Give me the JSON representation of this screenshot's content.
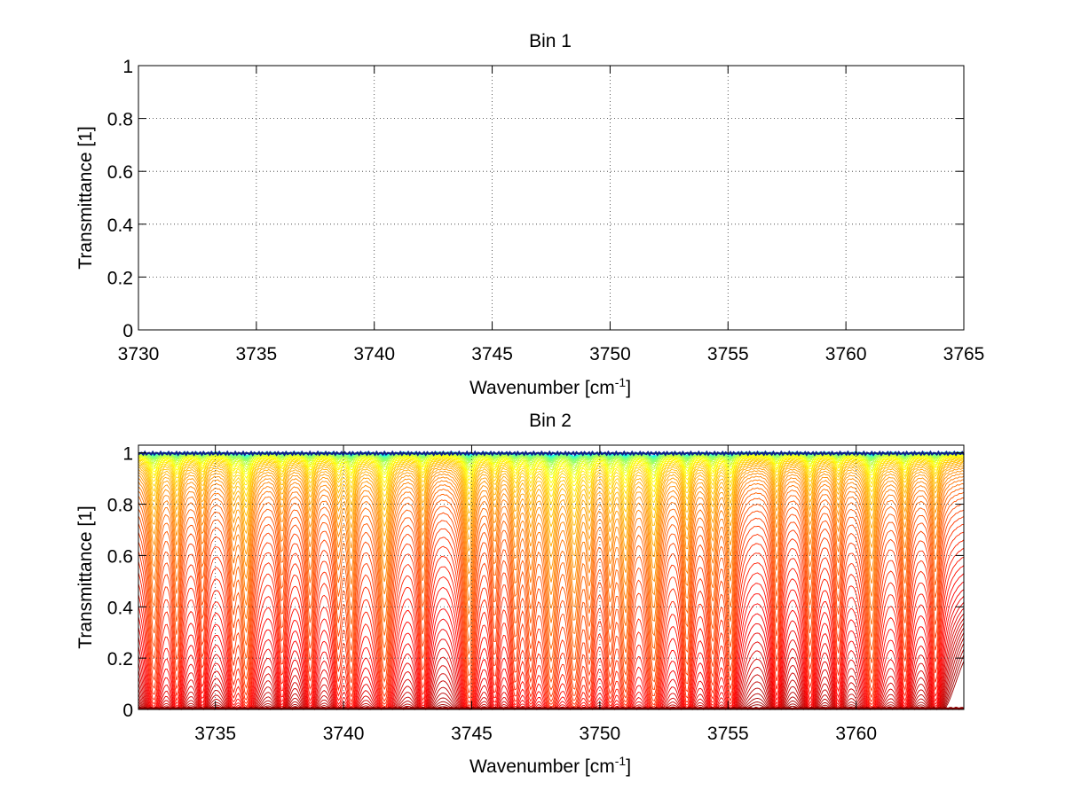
{
  "figure": {
    "background": "#ffffff"
  },
  "chart_data": [
    {
      "id": "bin1",
      "type": "line",
      "title": "Bin 1",
      "xlabel_main": "Wavenumber [cm",
      "xlabel_sup": "-1",
      "xlabel_tail": "]",
      "ylabel": "Transmittance [1]",
      "xlim": [
        3730,
        3765
      ],
      "ylim": [
        0,
        1
      ],
      "xticks": [
        3730,
        3735,
        3740,
        3745,
        3750,
        3755,
        3760,
        3765
      ],
      "yticks": [
        0,
        0.2,
        0.4,
        0.6,
        0.8,
        1
      ],
      "xtick_labels": [
        "3730",
        "3735",
        "3740",
        "3745",
        "3750",
        "3755",
        "3760",
        "3765"
      ],
      "ytick_labels": [
        "0",
        "0.2",
        "0.4",
        "0.6",
        "0.8",
        "1"
      ],
      "grid": true,
      "series": []
    },
    {
      "id": "bin2",
      "type": "line",
      "title": "Bin 2",
      "xlabel_main": "Wavenumber [cm",
      "xlabel_sup": "-1",
      "xlabel_tail": "]",
      "ylabel": "Transmittance [1]",
      "xlim": [
        3732,
        3764.2
      ],
      "ylim": [
        0,
        1.03
      ],
      "xticks": [
        3735,
        3740,
        3745,
        3750,
        3755,
        3760
      ],
      "yticks": [
        0,
        0.2,
        0.4,
        0.6,
        0.8,
        1
      ],
      "xtick_labels": [
        "3735",
        "3740",
        "3745",
        "3750",
        "3755",
        "3760"
      ],
      "ytick_labels": [
        "0",
        "0.2",
        "0.4",
        "0.6",
        "0.8",
        "1"
      ],
      "grid": true,
      "line_count": 60,
      "colormap": "jet",
      "absorption_lines": [
        {
          "center": 3732.6,
          "depth": 0.55,
          "width": 0.18
        },
        {
          "center": 3733.5,
          "depth": 0.45,
          "width": 0.15
        },
        {
          "center": 3734.5,
          "depth": 0.3,
          "width": 0.14
        },
        {
          "center": 3735.7,
          "depth": 0.35,
          "width": 0.15
        },
        {
          "center": 3736.2,
          "depth": 0.75,
          "width": 0.18
        },
        {
          "center": 3737.6,
          "depth": 0.3,
          "width": 0.15
        },
        {
          "center": 3738.7,
          "depth": 0.4,
          "width": 0.16
        },
        {
          "center": 3739.8,
          "depth": 0.35,
          "width": 0.15
        },
        {
          "center": 3740.3,
          "depth": 0.55,
          "width": 0.16
        },
        {
          "center": 3741.6,
          "depth": 0.8,
          "width": 0.2
        },
        {
          "center": 3743.1,
          "depth": 0.4,
          "width": 0.16
        },
        {
          "center": 3744.9,
          "depth": 0.75,
          "width": 0.18
        },
        {
          "center": 3745.9,
          "depth": 0.35,
          "width": 0.15
        },
        {
          "center": 3746.7,
          "depth": 0.45,
          "width": 0.16
        },
        {
          "center": 3747.3,
          "depth": 0.5,
          "width": 0.16
        },
        {
          "center": 3748.1,
          "depth": 0.9,
          "width": 0.2
        },
        {
          "center": 3749.0,
          "depth": 0.88,
          "width": 0.2
        },
        {
          "center": 3749.6,
          "depth": 0.5,
          "width": 0.15
        },
        {
          "center": 3750.4,
          "depth": 0.55,
          "width": 0.16
        },
        {
          "center": 3751.0,
          "depth": 0.8,
          "width": 0.18
        },
        {
          "center": 3752.1,
          "depth": 0.95,
          "width": 0.2
        },
        {
          "center": 3753.4,
          "depth": 0.6,
          "width": 0.16
        },
        {
          "center": 3754.4,
          "depth": 0.5,
          "width": 0.16
        },
        {
          "center": 3755.1,
          "depth": 0.55,
          "width": 0.16
        },
        {
          "center": 3756.9,
          "depth": 0.35,
          "width": 0.15
        },
        {
          "center": 3758.2,
          "depth": 0.4,
          "width": 0.16
        },
        {
          "center": 3759.3,
          "depth": 0.3,
          "width": 0.15
        },
        {
          "center": 3760.6,
          "depth": 0.7,
          "width": 0.18
        },
        {
          "center": 3761.9,
          "depth": 0.4,
          "width": 0.15
        },
        {
          "center": 3763.1,
          "depth": 0.35,
          "width": 0.15
        }
      ]
    }
  ]
}
